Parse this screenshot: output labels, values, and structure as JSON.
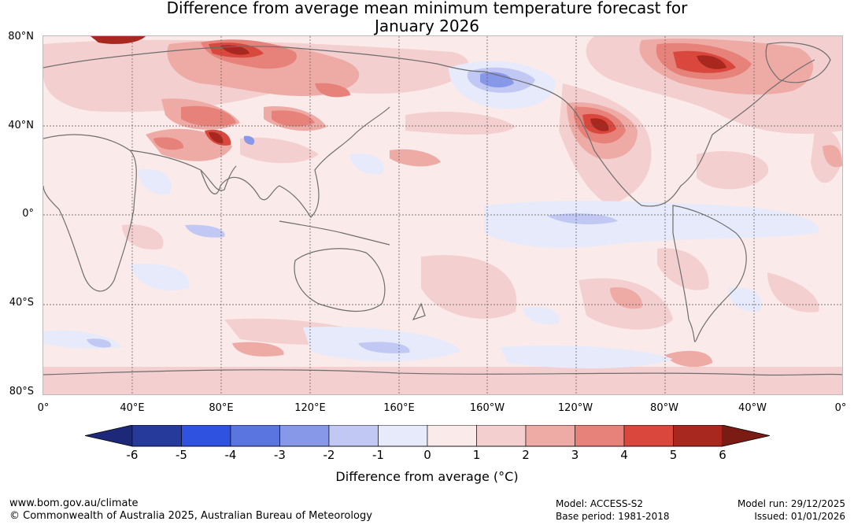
{
  "title": {
    "line1": "Difference from average mean minimum temperature forecast for",
    "line2": "January 2026"
  },
  "map": {
    "lat_labels": [
      "80°N",
      "40°N",
      "0°",
      "40°S",
      "80°S"
    ],
    "lon_labels": [
      "0°",
      "40°E",
      "80°E",
      "120°E",
      "160°E",
      "160°W",
      "120°W",
      "80°W",
      "40°W",
      "0°"
    ],
    "regions": {
      "strong_warm": [
        "Northern Canada",
        "Arctic Russia",
        "Western USA",
        "Tibetan Plateau",
        "Central Asia"
      ],
      "cool": [
        "Alaska",
        "Central equatorial Pacific",
        "Southern Ocean"
      ]
    }
  },
  "colorbar": {
    "ticks": [
      "-6",
      "-5",
      "-4",
      "-3",
      "-2",
      "-1",
      "0",
      "1",
      "2",
      "3",
      "4",
      "5",
      "6"
    ],
    "colors": [
      "#263a9c",
      "#2f52e0",
      "#5a75e0",
      "#8798e9",
      "#c1c8f3",
      "#e6eafa",
      "#fbeaea",
      "#f4cfcf",
      "#eeaaa4",
      "#e6827a",
      "#d9473d",
      "#a8271f"
    ],
    "under_color": "#1d2878",
    "over_color": "#7a1b14",
    "label": "Difference from average (°C)"
  },
  "footer": {
    "website": "www.bom.gov.au/climate",
    "copyright": "© Commonwealth of Australia 2025, Australian Bureau of Meteorology",
    "model": "Model: ACCESS-S2",
    "base_period": "Base period: 1981-2018",
    "model_run": "Model run: 29/12/2025",
    "issued": "Issued: 01/01/2026"
  }
}
